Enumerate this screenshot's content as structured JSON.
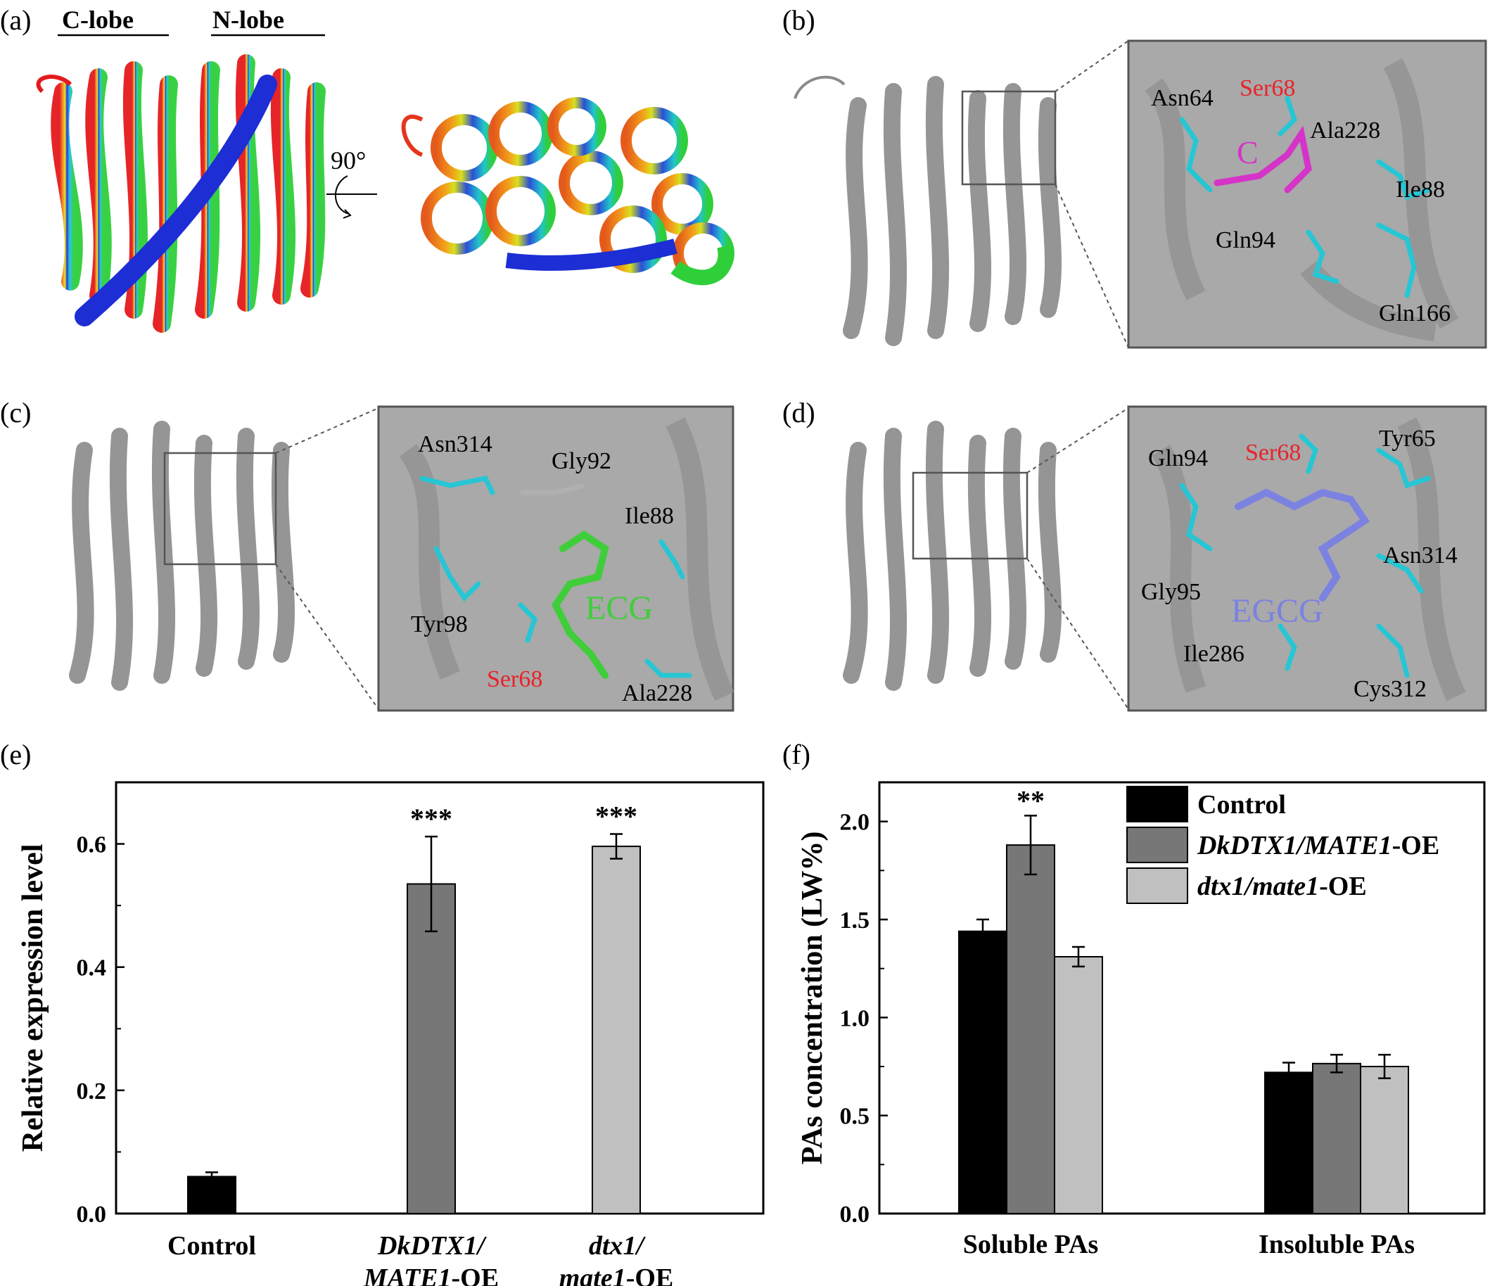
{
  "panels": {
    "a": {
      "label": "(a)",
      "c_lobe": "C-lobe",
      "n_lobe": "N-lobe",
      "rotation": "90°"
    },
    "b": {
      "label": "(b)",
      "residues": [
        "Ser68",
        "Asn64",
        "Ala228",
        "Ile88",
        "Gln94",
        "Gln166"
      ],
      "ligand": "C",
      "highlight_color": "#e8232a",
      "ligand_color": "#d633c9"
    },
    "c": {
      "label": "(c)",
      "residues": [
        "Asn314",
        "Gly92",
        "Ile88",
        "Tyr98",
        "Ser68",
        "Ala228"
      ],
      "ligand": "ECG",
      "ligand_color": "#3fce3a"
    },
    "d": {
      "label": "(d)",
      "residues": [
        "Gln94",
        "Ser68",
        "Tyr65",
        "Asn314",
        "Gly95",
        "Ile286",
        "Cys312"
      ],
      "ligand": "EGCG",
      "ligand_color": "#7b82e0"
    },
    "e": {
      "label": "(e)"
    },
    "f": {
      "label": "(f)"
    }
  },
  "chart_data": [
    {
      "type": "bar",
      "panel": "e",
      "ylabel": "Relative expression level",
      "categories": [
        {
          "line1": "Control",
          "line2": ""
        },
        {
          "line1": "DkDTX1/",
          "line2": "MATE1",
          "suffix": "-OE"
        },
        {
          "line1": "dtx1/",
          "line2": "mate1",
          "suffix": "-OE"
        }
      ],
      "values": [
        0.06,
        0.535,
        0.596
      ],
      "errors": [
        0.007,
        0.077,
        0.02
      ],
      "significance": [
        "",
        "***",
        "***"
      ],
      "colors": [
        "#000000",
        "#777777",
        "#c0c0c0"
      ],
      "ylim": [
        0,
        0.7
      ],
      "yticks": [
        "0.0",
        "0.2",
        "0.4",
        "0.6"
      ]
    },
    {
      "type": "bar",
      "panel": "f",
      "ylabel": "PAs concentration (LW%)",
      "categories": [
        "Soluble PAs",
        "Insoluble PAs"
      ],
      "series": [
        {
          "name": "Control",
          "values": [
            1.44,
            0.72
          ],
          "errors": [
            0.06,
            0.05
          ],
          "color": "#000000"
        },
        {
          "name": "DkDTX1/MATE1",
          "suffix": "-OE",
          "values": [
            1.88,
            0.765
          ],
          "errors": [
            0.15,
            0.045
          ],
          "color": "#777777"
        },
        {
          "name": "dtx1/mate1",
          "suffix": "-OE",
          "values": [
            1.31,
            0.75
          ],
          "errors": [
            0.05,
            0.06
          ],
          "color": "#c0c0c0"
        }
      ],
      "significance": [
        [
          "",
          "**",
          ""
        ],
        [
          "",
          "",
          ""
        ]
      ],
      "ylim": [
        0,
        2.2
      ],
      "yticks": [
        "0.0",
        "0.5",
        "1.0",
        "1.5",
        "2.0"
      ],
      "legend": "top-right"
    }
  ]
}
